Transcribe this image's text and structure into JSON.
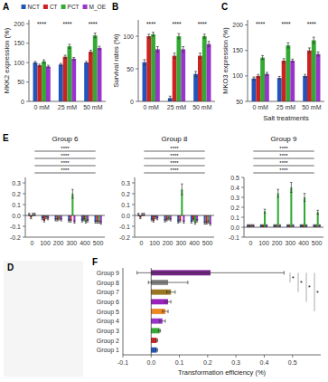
{
  "chart_data": [
    {
      "type": "bar",
      "title": "A",
      "ylabel": "MKK2 expression (%)",
      "categories": [
        "0 mM",
        "25 mM",
        "50 mM"
      ],
      "series": [
        {
          "name": "NCT",
          "color": "#2255bb",
          "values": [
            100,
            95,
            100
          ],
          "errors": [
            3,
            3,
            3
          ]
        },
        {
          "name": "CT",
          "color": "#cc2222",
          "values": [
            93,
            115,
            128
          ],
          "errors": [
            3,
            4,
            4
          ]
        },
        {
          "name": "PCT",
          "color": "#33aa33",
          "values": [
            103,
            142,
            170
          ],
          "errors": [
            4,
            5,
            6
          ]
        },
        {
          "name": "M_OE",
          "color": "#9933cc",
          "values": [
            90,
            110,
            138
          ],
          "errors": [
            3,
            3,
            4
          ]
        }
      ],
      "ylim": [
        0,
        210
      ],
      "yticks": [
        0,
        50,
        100,
        150,
        200
      ],
      "legend": "upper right",
      "annotations": [
        {
          "text": "****",
          "category": "0 mM"
        },
        {
          "text": "****",
          "category": "25 mM"
        },
        {
          "text": "****",
          "category": "50 mM"
        }
      ]
    },
    {
      "type": "bar",
      "title": "B",
      "ylabel": "Survival rates (%)",
      "categories": [
        "0 mM",
        "25 mM",
        "50 mM"
      ],
      "series": [
        {
          "color": "#2255bb",
          "values": [
            60,
            5,
            42
          ],
          "errors": [
            4,
            3,
            4
          ]
        },
        {
          "color": "#cc2222",
          "values": [
            100,
            70,
            70
          ],
          "errors": [
            3,
            4,
            4
          ]
        },
        {
          "color": "#33aa33",
          "values": [
            103,
            100,
            100
          ],
          "errors": [
            3,
            4,
            3
          ]
        },
        {
          "color": "#9933cc",
          "values": [
            80,
            80,
            88
          ],
          "errors": [
            4,
            4,
            4
          ]
        }
      ],
      "ylim": [
        0,
        125
      ],
      "yticks": [
        0,
        50,
        100
      ],
      "annotations": [
        {
          "text": "****",
          "category": "0 mM"
        },
        {
          "text": "****",
          "category": "25 mM"
        },
        {
          "text": "****",
          "category": "50 mM"
        }
      ]
    },
    {
      "type": "bar",
      "title": "C",
      "ylabel": "MKO3 expression (%)",
      "xlabel": "Salt treatments",
      "categories": [
        "0 mM",
        "25 mM",
        "50 mM"
      ],
      "series": [
        {
          "color": "#2255bb",
          "values": [
            95,
            96,
            100
          ],
          "errors": [
            3,
            3,
            3
          ]
        },
        {
          "color": "#cc2222",
          "values": [
            100,
            130,
            150
          ],
          "errors": [
            3,
            4,
            5
          ]
        },
        {
          "color": "#33aa33",
          "values": [
            136,
            160,
            170
          ],
          "errors": [
            4,
            5,
            6
          ]
        },
        {
          "color": "#9933cc",
          "values": [
            104,
            130,
            143
          ],
          "errors": [
            3,
            3,
            4
          ]
        }
      ],
      "ylim": [
        50,
        210
      ],
      "yticks": [
        50,
        100,
        150,
        200
      ],
      "annotations": [
        {
          "text": "****",
          "category": "0 mM"
        },
        {
          "text": "****",
          "category": "25 mM"
        },
        {
          "text": "****",
          "category": "50 mM"
        }
      ]
    },
    {
      "type": "diagram",
      "title": "D"
    },
    {
      "type": "bar",
      "title": "Group 6",
      "categories": [
        "0",
        "100",
        "200",
        "300",
        "400",
        "500"
      ],
      "series": [
        {
          "color": "#2255bb",
          "values": [
            0.01,
            -0.03,
            -0.04,
            -0.05,
            -0.05,
            -0.06
          ],
          "errors": [
            0.01,
            0.01,
            0.01,
            0.01,
            0.01,
            0.01
          ]
        },
        {
          "color": "#cc2222",
          "values": [
            -0.02,
            -0.05,
            -0.04,
            -0.05,
            -0.04,
            -0.06
          ],
          "errors": [
            0.01,
            0.01,
            0.01,
            0.01,
            0.01,
            0.01
          ]
        },
        {
          "color": "#33aa33",
          "values": [
            0.01,
            -0.02,
            -0.03,
            0.2,
            -0.06,
            -0.06
          ],
          "errors": [
            0.01,
            0.01,
            0.01,
            0.04,
            0.01,
            0.01
          ]
        },
        {
          "color": "#9933cc",
          "values": [
            0.01,
            -0.03,
            -0.04,
            -0.06,
            -0.05,
            -0.07
          ],
          "errors": [
            0.01,
            0.01,
            0.01,
            0.01,
            0.01,
            0.01
          ]
        }
      ],
      "ylim": [
        -0.2,
        0.35
      ],
      "yticks": [
        -0.2,
        -0.1,
        {
          "value": 0,
          "label": "0.0"
        },
        0.1,
        0.2,
        0.3
      ],
      "annotations": [
        {
          "text": "E"
        },
        {
          "text": "****",
          "from": "0",
          "to": "500"
        },
        {
          "text": "****",
          "from": "0",
          "to": "500"
        },
        {
          "text": "****",
          "from": "0",
          "to": "500"
        },
        {
          "text": "****",
          "from": "0",
          "to": "500"
        }
      ]
    },
    {
      "type": "bar",
      "title": "Group 8",
      "categories": [
        "0",
        "100",
        "200",
        "300",
        "400",
        "500"
      ],
      "series": [
        {
          "color": "#2255bb",
          "values": [
            0.01,
            -0.04,
            -0.05,
            -0.06,
            -0.06,
            -0.07
          ],
          "errors": [
            0.01,
            0.01,
            0.01,
            0.01,
            0.01,
            0.01
          ]
        },
        {
          "color": "#cc2222",
          "values": [
            -0.02,
            -0.05,
            -0.04,
            -0.05,
            -0.04,
            -0.07
          ],
          "errors": [
            0.01,
            0.01,
            0.01,
            0.01,
            0.01,
            0.01
          ]
        },
        {
          "color": "#33aa33",
          "values": [
            0.01,
            -0.02,
            -0.03,
            0.24,
            -0.07,
            -0.06
          ],
          "errors": [
            0.01,
            0.01,
            0.01,
            0.05,
            0.01,
            0.01
          ]
        },
        {
          "color": "#9933cc",
          "values": [
            0.01,
            -0.03,
            -0.04,
            -0.06,
            -0.05,
            -0.08
          ],
          "errors": [
            0.01,
            0.01,
            0.01,
            0.01,
            0.01,
            0.01
          ]
        }
      ],
      "ylim": [
        -0.2,
        0.35
      ],
      "yticks": [
        -0.2,
        -0.1,
        {
          "value": 0,
          "label": "0.0"
        },
        0.1,
        0.2,
        0.3
      ],
      "annotations": [
        {
          "text": "****",
          "from": "0",
          "to": "500"
        },
        {
          "text": "****",
          "from": "0",
          "to": "500"
        },
        {
          "text": "****",
          "from": "0",
          "to": "500"
        },
        {
          "text": "****",
          "from": "0",
          "to": "500"
        }
      ]
    },
    {
      "type": "bar",
      "title": "Group 9",
      "categories": [
        "0",
        "100",
        "200",
        "300",
        "400",
        "500"
      ],
      "series": [
        {
          "color": "#2255bb",
          "values": [
            0.02,
            0.02,
            0.02,
            0.02,
            0.02,
            0.02
          ],
          "errors": [
            0.005,
            0.005,
            0.005,
            0.005,
            0.005,
            0.005
          ]
        },
        {
          "color": "#cc2222",
          "values": [
            0.02,
            0.02,
            0.02,
            0.02,
            0.02,
            0.02
          ],
          "errors": [
            0.005,
            0.005,
            0.005,
            0.005,
            0.005,
            0.005
          ]
        },
        {
          "color": "#33aa33",
          "values": [
            0.02,
            0.16,
            0.34,
            0.4,
            0.3,
            0.15
          ],
          "errors": [
            0.005,
            0.02,
            0.04,
            0.05,
            0.04,
            0.02
          ]
        },
        {
          "color": "#9933cc",
          "values": [
            0.02,
            0.02,
            0.02,
            0.02,
            0.02,
            0.02
          ],
          "errors": [
            0.005,
            0.005,
            0.005,
            0.005,
            0.005,
            0.005
          ]
        }
      ],
      "ylim": [
        -0.1,
        0.5
      ],
      "yticks": [
        -0.1,
        {
          "value": 0,
          "label": "0.0"
        },
        0.1,
        0.2,
        0.3,
        0.4,
        0.5
      ],
      "annotations": [
        {
          "text": "****",
          "from": "0",
          "to": "500"
        },
        {
          "text": "****",
          "from": "0",
          "to": "500"
        },
        {
          "text": "****",
          "from": "0",
          "to": "500"
        },
        {
          "text": "****",
          "from": "0",
          "to": "500"
        }
      ]
    },
    {
      "type": "bar",
      "orientation": "horizontal",
      "title": "F",
      "xlabel": "Transformation efficiency (%)",
      "categories": [
        "Group 1",
        "Group 2",
        "Group 3",
        "Group 4",
        "Group 5",
        "Group 6",
        "Group 7",
        "Group 8",
        "Group 9"
      ],
      "values": [
        0.02,
        0.02,
        0.03,
        0.04,
        0.05,
        0.06,
        0.07,
        0.06,
        0.21
      ],
      "errors": [
        0.003,
        0.003,
        0.003,
        0.01,
        0.01,
        0.01,
        0.015,
        0.07,
        0.26
      ],
      "colors": [
        "#2255bb",
        "#cc2222",
        "#33aa33",
        "#9933cc",
        "#ee8822",
        "#9922bb",
        "#997722",
        "#888888",
        "#772288"
      ],
      "xlim": [
        -0.1,
        0.6
      ],
      "xticks": [
        -0.1,
        {
          "value": 0,
          "label": "0.0"
        },
        0.1,
        0.2,
        0.3,
        0.4,
        0.5
      ],
      "annotations": [
        {
          "text": "*",
          "from": "Group 9",
          "to": "Group 8"
        },
        {
          "text": "*",
          "from": "Group 9",
          "to": "Group 7"
        },
        {
          "text": "*",
          "from": "Group 9",
          "to": "Group 6"
        },
        {
          "text": "*",
          "from": "Group 9",
          "to": "Group 5"
        }
      ]
    }
  ]
}
